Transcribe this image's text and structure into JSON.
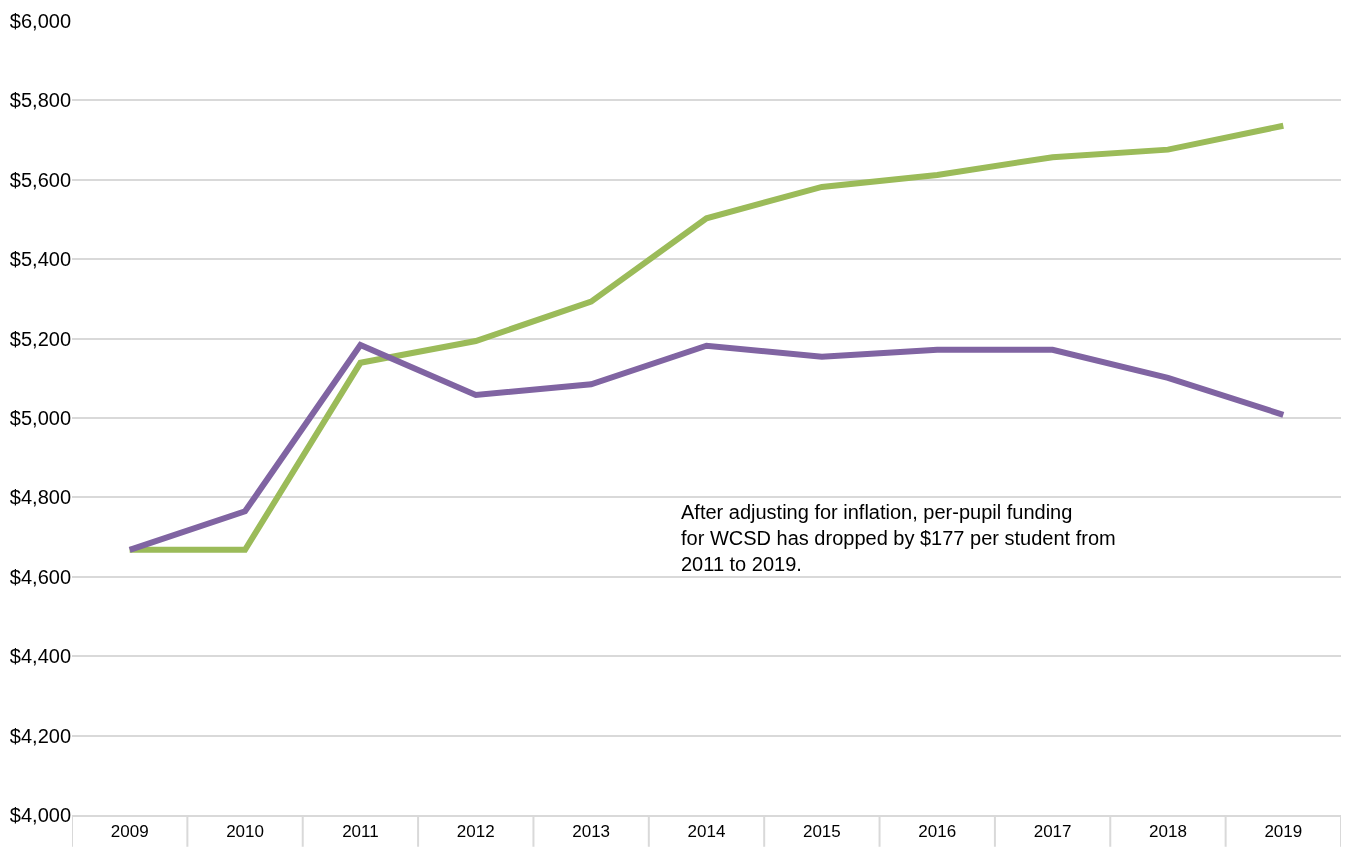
{
  "chart_data": {
    "type": "line",
    "categories": [
      "2009",
      "2010",
      "2011",
      "2012",
      "2013",
      "2014",
      "2015",
      "2016",
      "2017",
      "2018",
      "2019"
    ],
    "series": [
      {
        "color": "#9bbb59",
        "values": [
          4668,
          4668,
          5139,
          5194,
          5293,
          5503,
          5582,
          5612,
          5657,
          5676,
          5736
        ]
      },
      {
        "color": "#8064a2",
        "values": [
          4668,
          4765,
          5184,
          5058,
          5085,
          5182,
          5154,
          5172,
          5172,
          5101,
          5008
        ]
      }
    ],
    "ylim": [
      4000,
      6000
    ],
    "yticks": [
      {
        "value": 4000,
        "label": "$4,000"
      },
      {
        "value": 4200,
        "label": "$4,200"
      },
      {
        "value": 4400,
        "label": "$4,400"
      },
      {
        "value": 4600,
        "label": "$4,600"
      },
      {
        "value": 4800,
        "label": "$4,800"
      },
      {
        "value": 5000,
        "label": "$5,000"
      },
      {
        "value": 5200,
        "label": "$5,200"
      },
      {
        "value": 5400,
        "label": "$5,400"
      },
      {
        "value": 5600,
        "label": "$5,600"
      },
      {
        "value": 5800,
        "label": "$5,800"
      },
      {
        "value": 6000,
        "label": "$6,000"
      }
    ],
    "grid": "y",
    "marker": "none",
    "line_style": "solid",
    "annotations": [
      "After adjusting for inflation, per-pupil funding for WCSD has dropped by $177 per student from 2011 to 2019."
    ]
  }
}
